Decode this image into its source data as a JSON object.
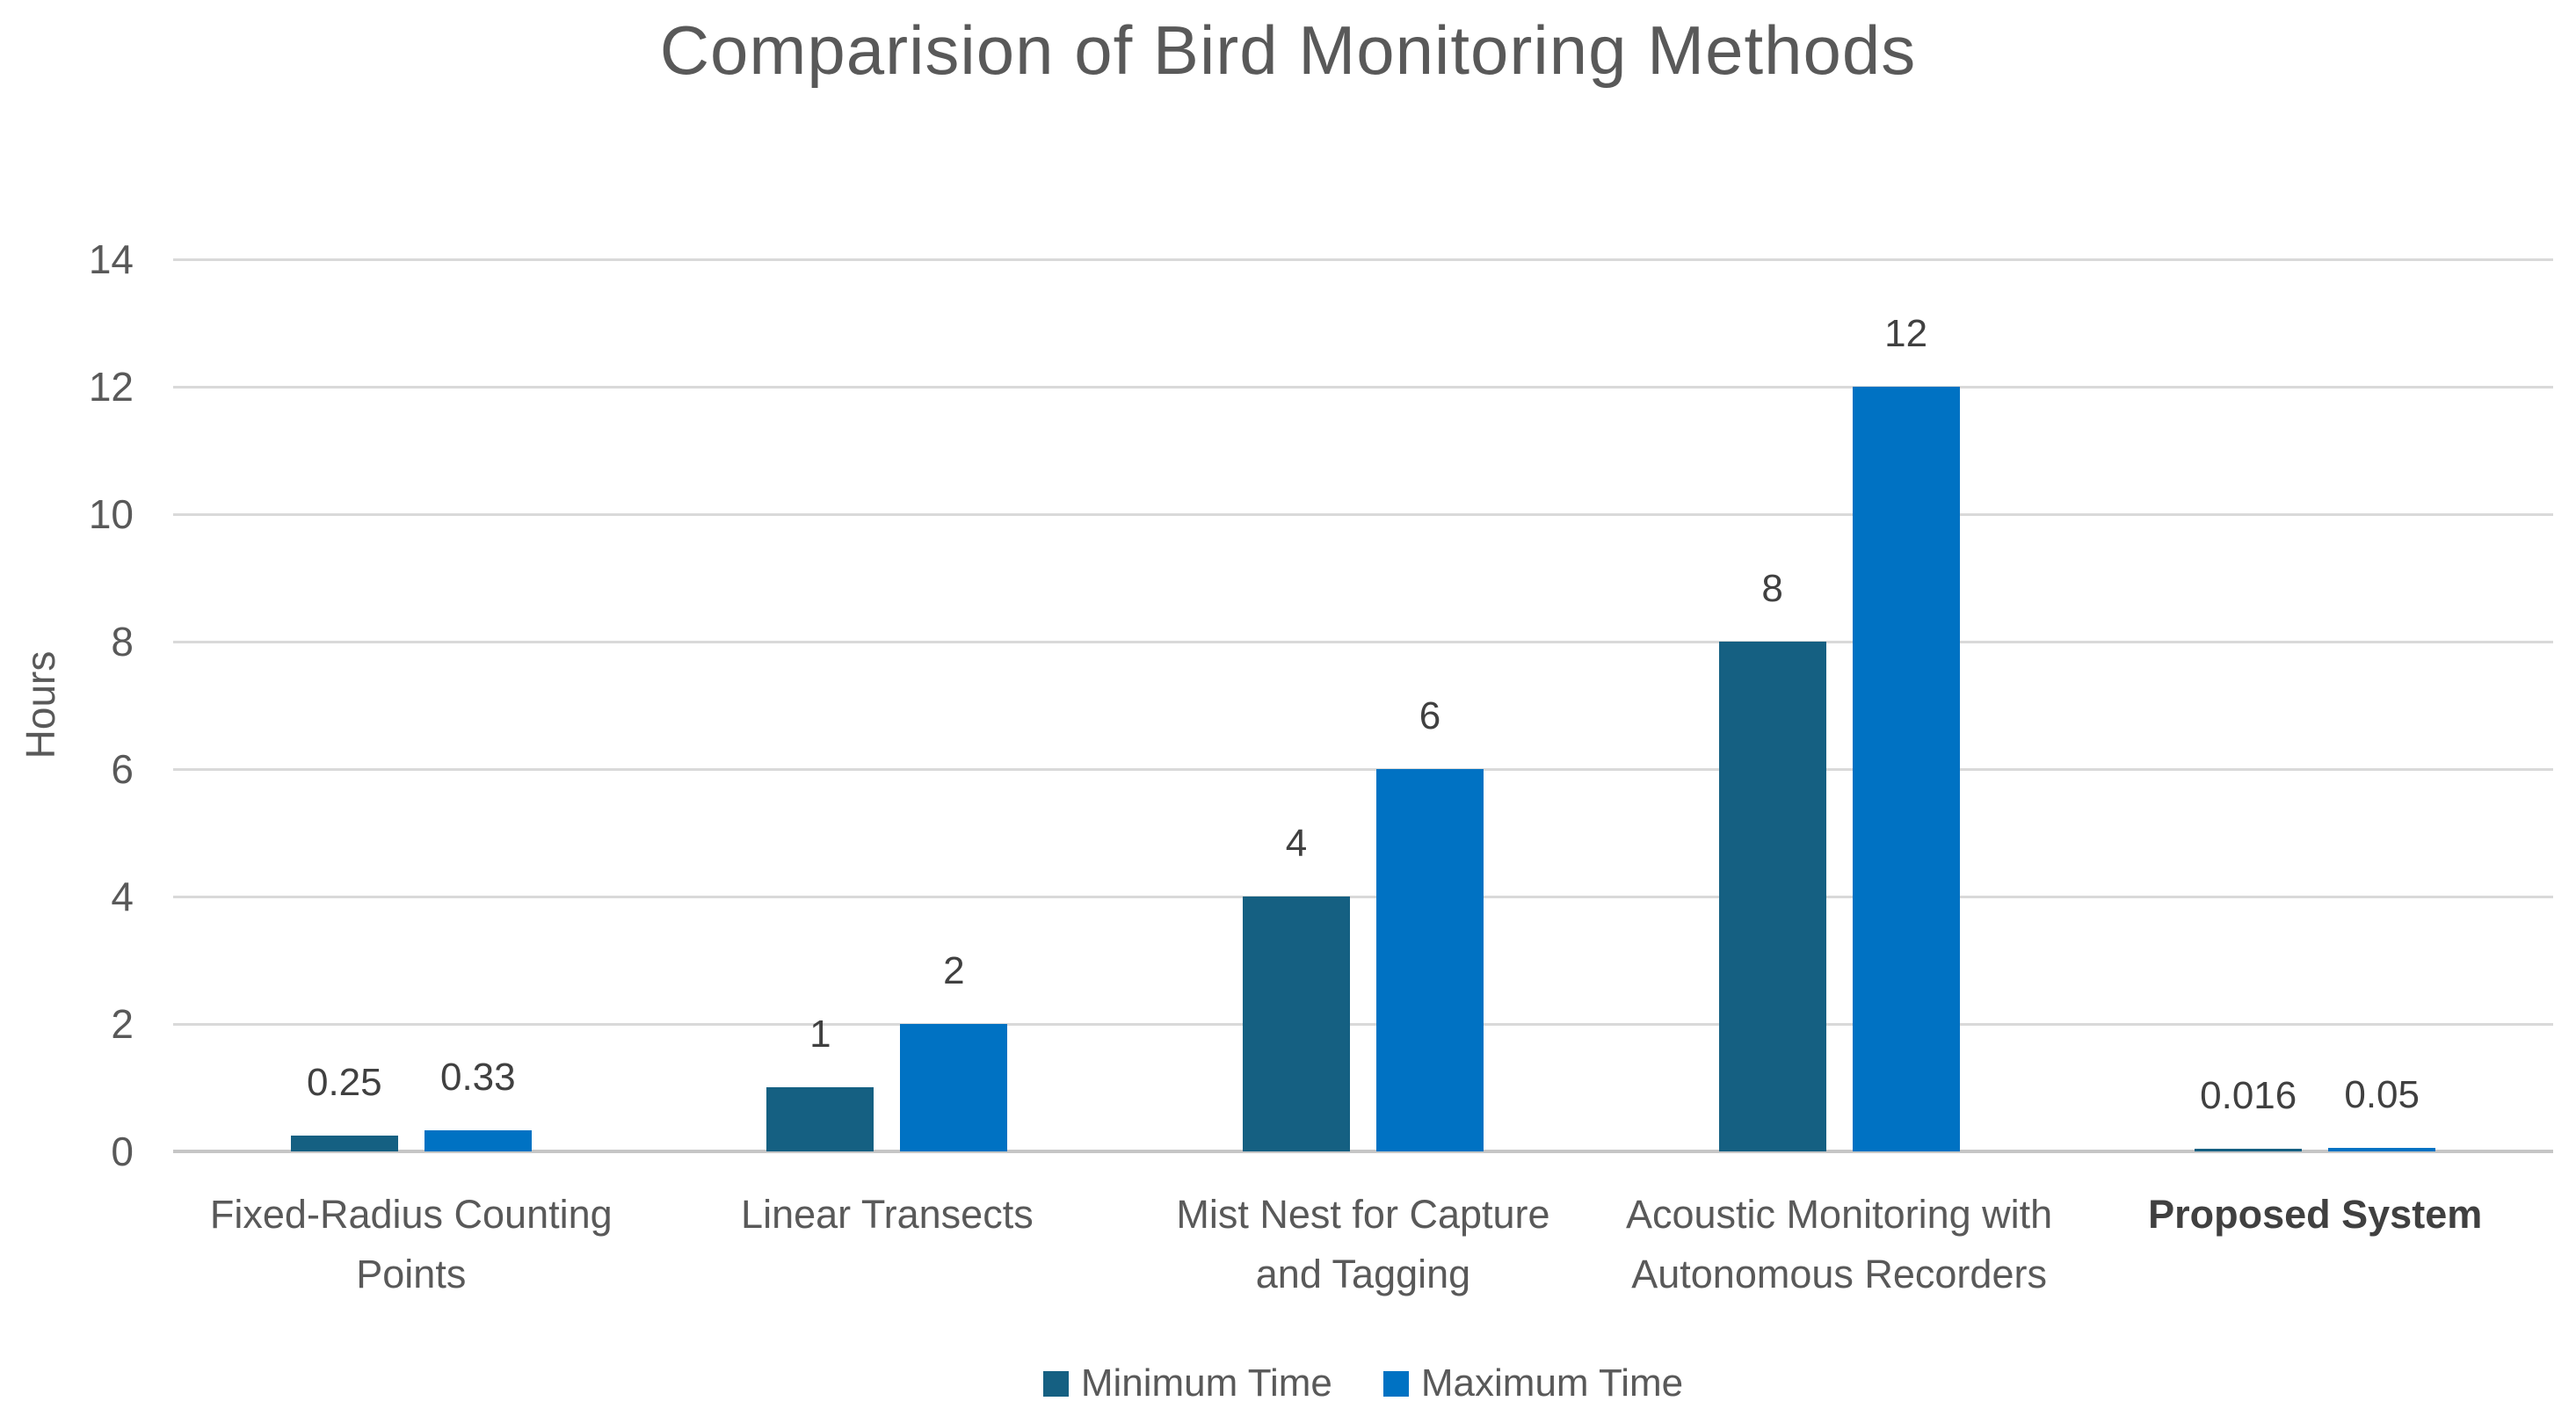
{
  "chart_data": {
    "type": "bar",
    "title": "Comparision of Bird Monitoring Methods",
    "ylabel": "Hours",
    "ylim": [
      0,
      14
    ],
    "ytick_step": 2,
    "yticks": [
      "0",
      "2",
      "4",
      "6",
      "8",
      "10",
      "12",
      "14"
    ],
    "grid": true,
    "legend_position": "bottom",
    "categories": [
      {
        "label": "Fixed-Radius Counting Points",
        "lines": [
          "Fixed-Radius Counting",
          "Points"
        ],
        "bold": false
      },
      {
        "label": "Linear Transects",
        "lines": [
          "Linear Transects"
        ],
        "bold": false
      },
      {
        "label": "Mist Nest for Capture and Tagging",
        "lines": [
          "Mist Nest for Capture",
          "and Tagging"
        ],
        "bold": false
      },
      {
        "label": "Acoustic Monitoring with Autonomous Recorders",
        "lines": [
          "Acoustic Monitoring with",
          "Autonomous Recorders"
        ],
        "bold": false
      },
      {
        "label": "Proposed System",
        "lines": [
          "Proposed System"
        ],
        "bold": true
      }
    ],
    "series": [
      {
        "name": "Minimum Time",
        "color": "#156082",
        "values": [
          0.25,
          1,
          4,
          8,
          0.016
        ]
      },
      {
        "name": "Maximum Time",
        "color": "#0072C3",
        "values": [
          0.33,
          2,
          6,
          12,
          0.05
        ]
      }
    ],
    "data_labels": [
      [
        "0.25",
        "1",
        "4",
        "8",
        "0.016"
      ],
      [
        "0.33",
        "2",
        "6",
        "12",
        "0.05"
      ]
    ],
    "colors": {
      "gridline": "#D9D9D9",
      "axis_line": "#C6C6C6",
      "title_text": "#595959",
      "data_label_text": "#404040"
    }
  }
}
